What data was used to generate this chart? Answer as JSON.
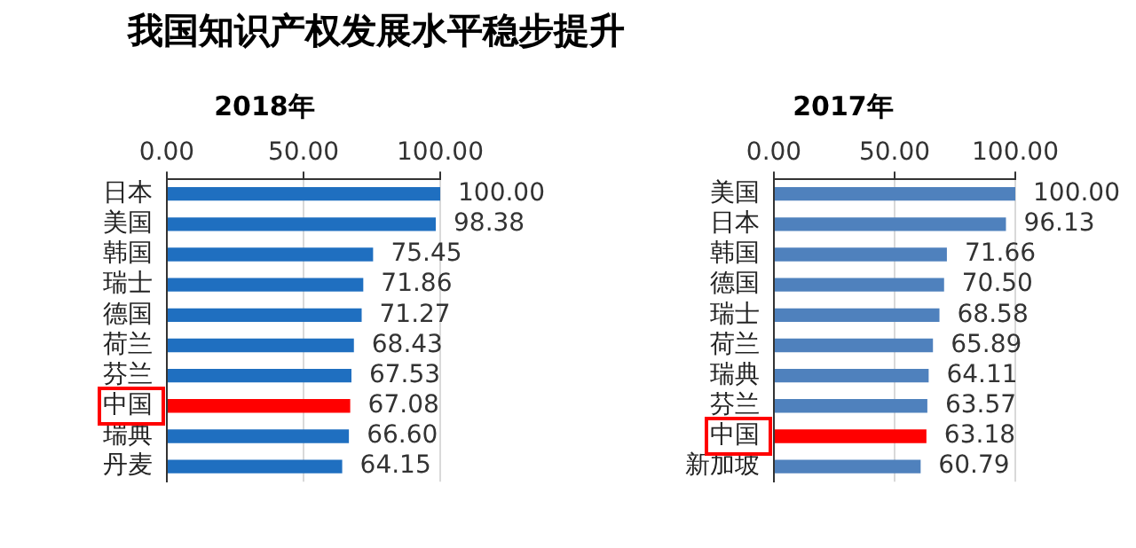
{
  "chart_data": [
    {
      "type": "bar",
      "orientation": "horizontal",
      "title": "2018年",
      "annotations": [
        "我国知识产权发展水平稳步提升"
      ],
      "categories": [
        "日本",
        "美国",
        "韩国",
        "瑞士",
        "德国",
        "荷兰",
        "芬兰",
        "中国",
        "瑞典",
        "丹麦"
      ],
      "values": [
        100.0,
        98.38,
        75.45,
        71.86,
        71.27,
        68.43,
        67.53,
        67.08,
        66.6,
        64.15
      ],
      "value_labels": [
        "100.00",
        "98.38",
        "75.45",
        "71.86",
        "71.27",
        "68.43",
        "67.53",
        "67.08",
        "66.60",
        "64.15"
      ],
      "colors": [
        "#1f6fc0",
        "#1f6fc0",
        "#1f6fc0",
        "#1f6fc0",
        "#1f6fc0",
        "#1f6fc0",
        "#1f6fc0",
        "#ff0000",
        "#1f6fc0",
        "#1f6fc0"
      ],
      "xlim": [
        0,
        100
      ],
      "xticks": [
        {
          "value": 0,
          "label": "0.00"
        },
        {
          "value": 50,
          "label": "50.00"
        },
        {
          "value": 100,
          "label": "100.00"
        }
      ],
      "grid": "x",
      "legend": false
    },
    {
      "type": "bar",
      "orientation": "horizontal",
      "title": "2017年",
      "categories": [
        "美国",
        "日本",
        "韩国",
        "德国",
        "瑞士",
        "荷兰",
        "瑞典",
        "芬兰",
        "中国",
        "新加坡"
      ],
      "values": [
        100.0,
        96.13,
        71.66,
        70.5,
        68.58,
        65.89,
        64.11,
        63.57,
        63.18,
        60.79
      ],
      "value_labels": [
        "100.00",
        "96.13",
        "71.66",
        "70.50",
        "68.58",
        "65.89",
        "64.11",
        "63.57",
        "63.18",
        "60.79"
      ],
      "colors": [
        "#4f81bd",
        "#4f81bd",
        "#4f81bd",
        "#4f81bd",
        "#4f81bd",
        "#4f81bd",
        "#4f81bd",
        "#4f81bd",
        "#ff0000",
        "#4f81bd"
      ],
      "xlim": [
        0,
        100
      ],
      "xticks": [
        {
          "value": 0,
          "label": "0.00"
        },
        {
          "value": 50,
          "label": "50.00"
        },
        {
          "value": 100,
          "label": "100.00"
        }
      ],
      "grid": "x",
      "legend": false
    }
  ]
}
